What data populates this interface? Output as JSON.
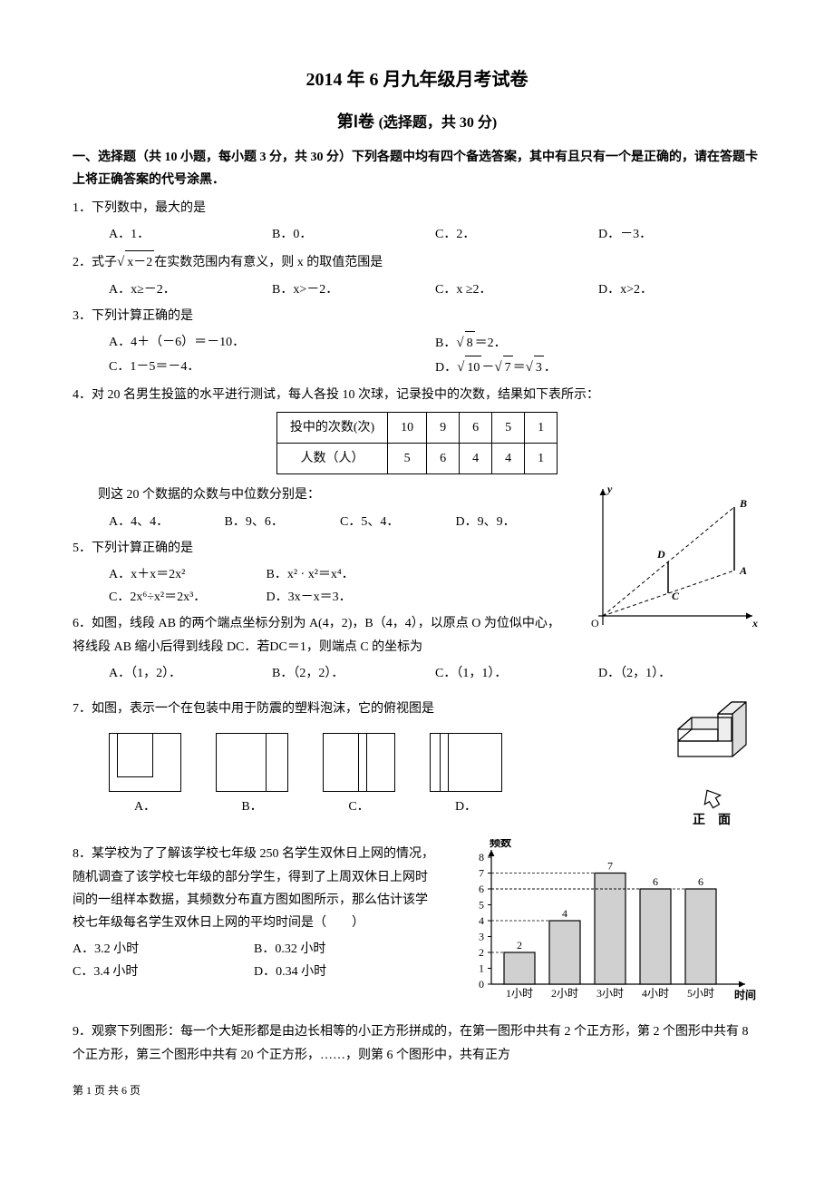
{
  "title": "2014 年 6 月九年级月考试卷",
  "subtitle_main": "第Ⅰ卷",
  "subtitle_note": "(选择题，共 30 分)",
  "section1_head": "一、选择题（共 10 小题，每小题 3 分，共 30 分）下列各题中均有四个备选答案，其中有且只有一个是正确的，请在答题卡上将正确答案的代号涂黑．",
  "q1": {
    "stem": "1．下列数中，最大的是",
    "a": "A．1．",
    "b": "B．0．",
    "c": "C．2．",
    "d": "D．－3．"
  },
  "q2": {
    "stem_pre": "2．式子",
    "stem_post": "在实数范围内有意义，则 x 的取值范围是",
    "sqrt_inner": "x－2",
    "a": "A．x≥－2．",
    "b": "B．x>－2．",
    "c": "C．x ≥2．",
    "d": "D．x>2．"
  },
  "q3": {
    "stem": "3．下列计算正确的是",
    "a": "A．4＋（－6）＝－10．",
    "b_pre": "B．",
    "b_sqrt": "8",
    "b_post": "＝2．",
    "c": "C．1－5＝－4．",
    "d_pre": "D．",
    "d_sqrt1": "10",
    "d_mid": "－",
    "d_sqrt2": "7",
    "d_eq": "＝",
    "d_sqrt3": "3",
    "d_post": "．"
  },
  "q4": {
    "stem": "4．对 20 名男生投篮的水平进行测试，每人各投 10 次球，记录投中的次数，结果如下表所示：",
    "table": {
      "header": [
        "投中的次数(次)",
        "10",
        "9",
        "6",
        "5",
        "1"
      ],
      "row": [
        "人数（人）",
        "5",
        "6",
        "4",
        "4",
        "1"
      ]
    },
    "post": "则这 20 个数据的众数与中位数分别是：",
    "a": "A．4、4．",
    "b": "B．9、6．",
    "c": "C．5、4．",
    "d": "D．9、9．"
  },
  "q5": {
    "stem": "5．下列计算正确的是",
    "a": "A．x＋x＝2x²",
    "b": "B．x² · x²＝x⁴．",
    "c": "C．2x⁶÷x²＝2x³．",
    "d": "D．3x－x＝3．"
  },
  "q6": {
    "stem": "6．如图，线段 AB 的两个端点坐标分别为 A(4，2)，B（4，4），以原点 O 为位似中心，将线段 AB 缩小后得到线段 DC．若DC＝1，则端点 C 的坐标为",
    "a": "A．（1，2）．",
    "b": "B．（2，2）．",
    "c": "C．（1，1）．",
    "d": "D．（2，1）．",
    "graph": {
      "labels": {
        "O": "O",
        "x": "x",
        "y": "y",
        "A": "A",
        "B": "B",
        "C": "C",
        "D": "D"
      },
      "axis_stroke": "#000",
      "line_stroke": "#000",
      "dash": "4,3"
    }
  },
  "q7": {
    "stem": "7．如图，表示一个在包装中用于防震的塑料泡沫，它的俯视图是",
    "labels": {
      "a": "A．",
      "b": "B．",
      "c": "C．",
      "d": "D．"
    },
    "side_caption": "正　面",
    "block_stroke": "#000"
  },
  "q8": {
    "stem": "8．某学校为了了解该学校七年级 250 名学生双休日上网的情况，随机调查了该学校七年级的部分学生，得到了上周双休日上网时间的一组样本数据，其频数分布直方图如图所示，那么估计该学校七年级每名学生双休日上网的平均时间是（　　）",
    "a": "A．3.2 小时",
    "b": "B．0.32 小时",
    "c": "C．3.4 小时",
    "d": "D．0.34 小时",
    "chart": {
      "ylabel": "频数",
      "xlabel": "时间",
      "categories": [
        "1小时",
        "2小时",
        "3小时",
        "4小时",
        "5小时"
      ],
      "values": [
        2,
        4,
        7,
        6,
        6
      ],
      "ymax": 8,
      "ytick_step": 1,
      "bar_fill": "#d0d0d0",
      "bar_stroke": "#000",
      "axis_stroke": "#000",
      "grid_stroke": "#bbb"
    }
  },
  "q9": {
    "stem": "9．观察下列图形：每一个大矩形都是由边长相等的小正方形拼成的，在第一图形中共有 2 个正方形，第 2 个图形中共有 8 个正方形，第三个图形中共有 20 个正方形，……，则第 6 个图形中，共有正方"
  },
  "footer": "第 1 页 共 6 页"
}
